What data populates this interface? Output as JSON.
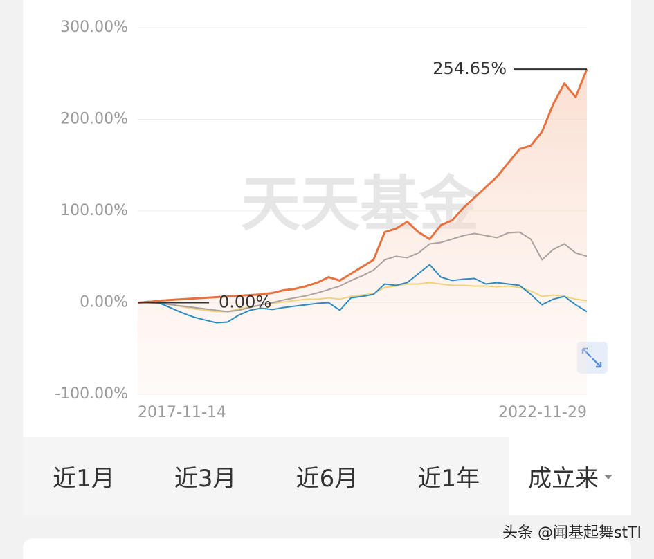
{
  "chart_data": {
    "type": "line",
    "watermark": "天天基金",
    "categories": [
      "2017-11-14",
      null,
      null,
      null,
      null,
      null,
      null,
      null,
      null,
      null,
      null,
      null,
      null,
      null,
      null,
      null,
      null,
      null,
      null,
      null,
      null,
      null,
      null,
      null,
      null,
      null,
      null,
      null,
      null,
      null,
      null,
      null,
      null,
      null,
      null,
      null,
      null,
      null,
      null,
      null,
      "2022-11-29"
    ],
    "series": [
      {
        "color": "#e8723f",
        "values": [
          0,
          0.8,
          2.3,
          3.0,
          3.8,
          4.5,
          5.3,
          6.0,
          6.8,
          7.5,
          8.3,
          9.1,
          10.6,
          13.6,
          15.1,
          18.1,
          21.9,
          27.9,
          24.2,
          31.7,
          39.2,
          46.8,
          77.0,
          80.8,
          88.3,
          77.0,
          69.4,
          84.5,
          89.8,
          103.4,
          114.7,
          126.0,
          137.4,
          152.5,
          167.5,
          171.3,
          186.4,
          216.6,
          239.2,
          224.2,
          254.65
        ]
      },
      {
        "color": "#a9a29e",
        "values": [
          0,
          0,
          -0.8,
          -2.3,
          -3.8,
          -5.3,
          -6.8,
          -8.3,
          -9.8,
          -8.3,
          -5.3,
          -2.3,
          0,
          3.0,
          5.3,
          7.5,
          10.6,
          14.3,
          18.1,
          24.2,
          29.4,
          35.5,
          46.8,
          50.6,
          49.1,
          54.3,
          64.2,
          65.7,
          69.4,
          73.2,
          75.5,
          73.2,
          70.9,
          76.2,
          77.0,
          69.4,
          46.8,
          58.1,
          64.2,
          54.3,
          50.6
        ]
      },
      {
        "color": "#2f8ac4",
        "values": [
          0,
          1.5,
          -0.8,
          -6.0,
          -11.3,
          -15.8,
          -18.9,
          -21.9,
          -21.1,
          -13.6,
          -8.3,
          -6.0,
          -7.5,
          -5.3,
          -3.8,
          -2.3,
          -0.8,
          0,
          -8.3,
          5.3,
          6.8,
          9.1,
          20.4,
          18.9,
          21.9,
          31.7,
          41.5,
          27.9,
          24.2,
          25.7,
          26.4,
          20.4,
          21.9,
          20.4,
          18.9,
          9.1,
          -2.3,
          3.8,
          6.8,
          -2.3,
          -9.8
        ]
      },
      {
        "color": "#f0d27a",
        "values": [
          0,
          0,
          -0.8,
          -2.3,
          -4.5,
          -6.8,
          -8.3,
          -9.8,
          -9.8,
          -6.8,
          -4.5,
          -2.3,
          -0.8,
          0.8,
          2.3,
          3.8,
          3.8,
          5.3,
          3.8,
          6.8,
          8.3,
          9.8,
          16.6,
          18.1,
          20.4,
          20.4,
          21.9,
          20.4,
          18.9,
          18.9,
          18.1,
          18.1,
          17.4,
          18.1,
          16.6,
          12.8,
          6.8,
          8.3,
          6.8,
          3.8,
          2.3
        ]
      }
    ],
    "ylim": [
      -100,
      300
    ],
    "yticks": [
      {
        "value": -100,
        "label": "-100.00%"
      },
      {
        "value": 0,
        "label": "0.00%"
      },
      {
        "value": 100,
        "label": "100.00%"
      },
      {
        "value": 200,
        "label": "200.00%"
      },
      {
        "value": 300,
        "label": "300.00%"
      }
    ],
    "grid": true,
    "annotations": [
      "254.65%",
      "0.00%"
    ]
  },
  "tabs": [
    "近1月",
    "近3月",
    "近6月",
    "近1年",
    "成立来"
  ],
  "footer": "头条 @闻基起舞stTI"
}
